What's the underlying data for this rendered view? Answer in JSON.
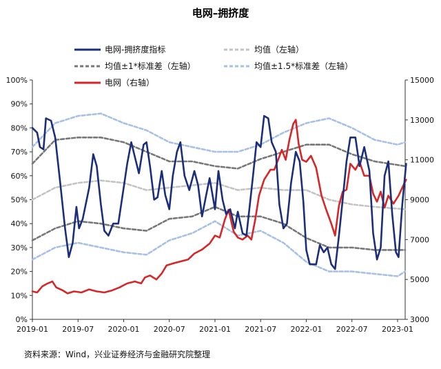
{
  "chart_data": {
    "type": "line",
    "title": "电网–拥挤度",
    "source": "资料来源：Wind，兴业证券经济与金融研究院整理",
    "x_ticks": [
      "2019-01",
      "2019-07",
      "2020-01",
      "2020-07",
      "2021-01",
      "2021-07",
      "2022-01",
      "2022-07",
      "2023-01"
    ],
    "x_range": [
      "2019-01",
      "2023-02"
    ],
    "y_left": {
      "ticks": [
        "0%",
        "10%",
        "20%",
        "30%",
        "40%",
        "50%",
        "60%",
        "70%",
        "80%",
        "90%",
        "100%"
      ],
      "range": [
        0,
        100
      ],
      "unit": "%"
    },
    "y_right": {
      "ticks": [
        "3000",
        "5000",
        "7000",
        "9000",
        "11000",
        "13000",
        "15000"
      ],
      "range": [
        3000,
        15000
      ]
    },
    "grid": false,
    "legend_position": "top",
    "series": [
      {
        "name": "电网-拥挤度指标",
        "axis": "left",
        "color": "#1a2e7a",
        "style": "solid",
        "points": [
          [
            "2019-01-01",
            80
          ],
          [
            "2019-01-20",
            78
          ],
          [
            "2019-02-01",
            72
          ],
          [
            "2019-02-15",
            71
          ],
          [
            "2019-02-25",
            84
          ],
          [
            "2019-03-15",
            83
          ],
          [
            "2019-04-01",
            76
          ],
          [
            "2019-04-20",
            58
          ],
          [
            "2019-05-10",
            38
          ],
          [
            "2019-05-25",
            26
          ],
          [
            "2019-06-10",
            32
          ],
          [
            "2019-06-25",
            47
          ],
          [
            "2019-07-05",
            38
          ],
          [
            "2019-07-20",
            42
          ],
          [
            "2019-08-15",
            55
          ],
          [
            "2019-09-01",
            69
          ],
          [
            "2019-09-15",
            64
          ],
          [
            "2019-10-01",
            48
          ],
          [
            "2019-10-15",
            37
          ],
          [
            "2019-11-01",
            35
          ],
          [
            "2019-11-20",
            40
          ],
          [
            "2019-12-10",
            40
          ],
          [
            "2020-01-01",
            55
          ],
          [
            "2020-01-15",
            65
          ],
          [
            "2020-02-01",
            74
          ],
          [
            "2020-02-15",
            68
          ],
          [
            "2020-03-01",
            61
          ],
          [
            "2020-03-20",
            73
          ],
          [
            "2020-04-01",
            74
          ],
          [
            "2020-04-15",
            64
          ],
          [
            "2020-05-01",
            50
          ],
          [
            "2020-05-15",
            51
          ],
          [
            "2020-06-01",
            62
          ],
          [
            "2020-06-15",
            52
          ],
          [
            "2020-07-01",
            46
          ],
          [
            "2020-07-15",
            60
          ],
          [
            "2020-08-01",
            70
          ],
          [
            "2020-08-15",
            74
          ],
          [
            "2020-09-01",
            60
          ],
          [
            "2020-09-20",
            54
          ],
          [
            "2020-10-10",
            62
          ],
          [
            "2020-10-25",
            56
          ],
          [
            "2020-11-10",
            43
          ],
          [
            "2020-11-25",
            51
          ],
          [
            "2020-12-10",
            59
          ],
          [
            "2021-01-01",
            46
          ],
          [
            "2021-01-15",
            62
          ],
          [
            "2021-02-01",
            50
          ],
          [
            "2021-02-15",
            44
          ],
          [
            "2021-03-01",
            46
          ],
          [
            "2021-03-20",
            38
          ],
          [
            "2021-04-01",
            45
          ],
          [
            "2021-04-20",
            36
          ],
          [
            "2021-05-05",
            35
          ],
          [
            "2021-05-20",
            49
          ],
          [
            "2021-06-01",
            60
          ],
          [
            "2021-06-15",
            74
          ],
          [
            "2021-07-01",
            72
          ],
          [
            "2021-07-15",
            85
          ],
          [
            "2021-08-01",
            84
          ],
          [
            "2021-08-15",
            74
          ],
          [
            "2021-09-01",
            70
          ],
          [
            "2021-09-15",
            48
          ],
          [
            "2021-10-01",
            38
          ],
          [
            "2021-10-15",
            40
          ],
          [
            "2021-11-01",
            57
          ],
          [
            "2021-11-20",
            70
          ],
          [
            "2021-12-05",
            66
          ],
          [
            "2021-12-20",
            49
          ],
          [
            "2022-01-01",
            29
          ],
          [
            "2022-01-15",
            23
          ],
          [
            "2022-02-10",
            23
          ],
          [
            "2022-02-25",
            31
          ],
          [
            "2022-03-10",
            28
          ],
          [
            "2022-03-25",
            30
          ],
          [
            "2022-04-10",
            23
          ],
          [
            "2022-04-25",
            21
          ],
          [
            "2022-05-10",
            35
          ],
          [
            "2022-05-25",
            50
          ],
          [
            "2022-06-10",
            66
          ],
          [
            "2022-06-25",
            76
          ],
          [
            "2022-07-15",
            76
          ],
          [
            "2022-08-01",
            64
          ],
          [
            "2022-08-20",
            72
          ],
          [
            "2022-09-10",
            62
          ],
          [
            "2022-09-25",
            36
          ],
          [
            "2022-10-10",
            25
          ],
          [
            "2022-10-25",
            30
          ],
          [
            "2022-11-10",
            60
          ],
          [
            "2022-11-25",
            66
          ],
          [
            "2022-12-10",
            44
          ],
          [
            "2022-12-25",
            28
          ],
          [
            "2023-01-05",
            26
          ],
          [
            "2023-01-20",
            48
          ],
          [
            "2023-02-05",
            65
          ]
        ]
      },
      {
        "name": "均值（左轴）",
        "axis": "left",
        "color": "#c4c4c4",
        "style": "dashed",
        "points": [
          [
            "2019-01-01",
            50
          ],
          [
            "2019-04-01",
            55
          ],
          [
            "2019-07-01",
            57
          ],
          [
            "2019-10-01",
            58
          ],
          [
            "2020-01-01",
            57
          ],
          [
            "2020-04-01",
            54
          ],
          [
            "2020-07-01",
            55
          ],
          [
            "2020-10-01",
            56
          ],
          [
            "2021-01-01",
            57
          ],
          [
            "2021-04-01",
            54
          ],
          [
            "2021-07-01",
            55
          ],
          [
            "2021-10-01",
            54
          ],
          [
            "2022-01-01",
            54
          ],
          [
            "2022-04-01",
            50
          ],
          [
            "2022-07-01",
            48
          ],
          [
            "2022-10-01",
            47
          ],
          [
            "2023-02-01",
            46
          ]
        ]
      },
      {
        "name": "均值±1*标准差（左轴）",
        "axis": "left",
        "color": "#777777",
        "style": "dashed",
        "points": [
          [
            "2019-01-01",
            33
          ],
          [
            "2019-04-01",
            38
          ],
          [
            "2019-07-01",
            41
          ],
          [
            "2019-10-01",
            40
          ],
          [
            "2020-01-01",
            38
          ],
          [
            "2020-04-01",
            37
          ],
          [
            "2020-07-01",
            42
          ],
          [
            "2020-10-01",
            43
          ],
          [
            "2021-01-01",
            47
          ],
          [
            "2021-04-01",
            43
          ],
          [
            "2021-07-01",
            43
          ],
          [
            "2021-10-01",
            40
          ],
          [
            "2022-01-01",
            34
          ],
          [
            "2022-04-01",
            30
          ],
          [
            "2022-07-01",
            30
          ],
          [
            "2022-10-01",
            29
          ],
          [
            "2023-02-01",
            29
          ]
        ]
      },
      {
        "name": "均值±1*标准差（左轴）",
        "axis": "left",
        "color": "#777777",
        "style": "dashed",
        "points": [
          [
            "2019-01-01",
            65
          ],
          [
            "2019-04-01",
            75
          ],
          [
            "2019-07-01",
            76
          ],
          [
            "2019-10-01",
            76
          ],
          [
            "2020-01-01",
            74
          ],
          [
            "2020-04-01",
            70
          ],
          [
            "2020-07-01",
            66
          ],
          [
            "2020-10-01",
            66
          ],
          [
            "2021-01-01",
            64
          ],
          [
            "2021-04-01",
            63
          ],
          [
            "2021-07-01",
            67
          ],
          [
            "2021-10-01",
            70
          ],
          [
            "2022-01-01",
            73
          ],
          [
            "2022-04-01",
            73
          ],
          [
            "2022-07-01",
            69
          ],
          [
            "2022-10-01",
            66
          ],
          [
            "2023-02-01",
            64
          ]
        ]
      },
      {
        "name": "均值±1.5*标准差（左轴）",
        "axis": "left",
        "color": "#a7c0e6",
        "style": "dashed",
        "points": [
          [
            "2019-01-01",
            25
          ],
          [
            "2019-04-01",
            30
          ],
          [
            "2019-07-01",
            32
          ],
          [
            "2019-10-01",
            30
          ],
          [
            "2020-01-01",
            28
          ],
          [
            "2020-04-01",
            27
          ],
          [
            "2020-07-01",
            33
          ],
          [
            "2020-10-01",
            36
          ],
          [
            "2021-01-01",
            41
          ],
          [
            "2021-04-01",
            35
          ],
          [
            "2021-07-01",
            37
          ],
          [
            "2021-10-01",
            32
          ],
          [
            "2022-01-01",
            24
          ],
          [
            "2022-04-01",
            20
          ],
          [
            "2022-07-01",
            20
          ],
          [
            "2022-10-01",
            19
          ],
          [
            "2023-01-01",
            18
          ],
          [
            "2023-02-01",
            20
          ]
        ]
      },
      {
        "name": "均值±1.5*标准差（左轴）",
        "axis": "left",
        "color": "#a7c0e6",
        "style": "dashed",
        "points": [
          [
            "2019-01-01",
            72
          ],
          [
            "2019-04-01",
            82
          ],
          [
            "2019-07-01",
            85
          ],
          [
            "2019-10-01",
            86
          ],
          [
            "2020-01-01",
            82
          ],
          [
            "2020-04-01",
            79
          ],
          [
            "2020-07-01",
            74
          ],
          [
            "2020-10-01",
            72
          ],
          [
            "2021-01-01",
            70
          ],
          [
            "2021-04-01",
            70
          ],
          [
            "2021-07-01",
            73
          ],
          [
            "2021-10-01",
            78
          ],
          [
            "2022-01-01",
            82
          ],
          [
            "2022-04-01",
            84
          ],
          [
            "2022-07-01",
            80
          ],
          [
            "2022-10-01",
            75
          ],
          [
            "2023-01-01",
            73
          ],
          [
            "2023-02-01",
            74
          ]
        ]
      },
      {
        "name": "电网（右轴）",
        "axis": "right",
        "color": "#d62728",
        "style": "solid",
        "points": [
          [
            "2019-01-01",
            4400
          ],
          [
            "2019-01-20",
            4350
          ],
          [
            "2019-02-10",
            4650
          ],
          [
            "2019-03-01",
            4800
          ],
          [
            "2019-03-20",
            4900
          ],
          [
            "2019-04-05",
            4600
          ],
          [
            "2019-05-01",
            4450
          ],
          [
            "2019-05-20",
            4300
          ],
          [
            "2019-06-15",
            4400
          ],
          [
            "2019-07-15",
            4350
          ],
          [
            "2019-08-15",
            4500
          ],
          [
            "2019-09-15",
            4400
          ],
          [
            "2019-10-15",
            4350
          ],
          [
            "2019-11-15",
            4450
          ],
          [
            "2019-12-15",
            4600
          ],
          [
            "2020-01-15",
            4800
          ],
          [
            "2020-02-15",
            4900
          ],
          [
            "2020-03-10",
            4800
          ],
          [
            "2020-03-25",
            5100
          ],
          [
            "2020-04-15",
            5200
          ],
          [
            "2020-05-10",
            5000
          ],
          [
            "2020-06-01",
            5300
          ],
          [
            "2020-06-20",
            5700
          ],
          [
            "2020-07-15",
            5800
          ],
          [
            "2020-08-15",
            5900
          ],
          [
            "2020-09-15",
            6000
          ],
          [
            "2020-10-10",
            6300
          ],
          [
            "2020-11-10",
            6500
          ],
          [
            "2020-12-10",
            6800
          ],
          [
            "2021-01-01",
            7200
          ],
          [
            "2021-01-20",
            7100
          ],
          [
            "2021-02-10",
            8000
          ],
          [
            "2021-02-25",
            8500
          ],
          [
            "2021-03-15",
            7400
          ],
          [
            "2021-04-01",
            7100
          ],
          [
            "2021-04-20",
            7000
          ],
          [
            "2021-05-10",
            7200
          ],
          [
            "2021-05-25",
            7000
          ],
          [
            "2021-06-10",
            8000
          ],
          [
            "2021-06-25",
            9200
          ],
          [
            "2021-07-15",
            10000
          ],
          [
            "2021-08-10",
            10500
          ],
          [
            "2021-08-25",
            10500
          ],
          [
            "2021-09-10",
            11000
          ],
          [
            "2021-09-25",
            11500
          ],
          [
            "2021-10-10",
            11000
          ],
          [
            "2021-10-25",
            12000
          ],
          [
            "2021-11-10",
            12800
          ],
          [
            "2021-11-20",
            13000
          ],
          [
            "2021-12-01",
            11800
          ],
          [
            "2021-12-15",
            11000
          ],
          [
            "2022-01-01",
            10900
          ],
          [
            "2022-01-20",
            11200
          ],
          [
            "2022-02-10",
            10600
          ],
          [
            "2022-03-01",
            9200
          ],
          [
            "2022-03-20",
            8500
          ],
          [
            "2022-04-10",
            7800
          ],
          [
            "2022-04-25",
            7200
          ],
          [
            "2022-05-10",
            8700
          ],
          [
            "2022-05-25",
            9400
          ],
          [
            "2022-06-10",
            9500
          ],
          [
            "2022-06-25",
            10800
          ],
          [
            "2022-07-15",
            10500
          ],
          [
            "2022-08-01",
            10900
          ],
          [
            "2022-08-20",
            10200
          ],
          [
            "2022-09-10",
            10200
          ],
          [
            "2022-09-25",
            9300
          ],
          [
            "2022-10-10",
            8900
          ],
          [
            "2022-10-25",
            9400
          ],
          [
            "2022-11-10",
            8600
          ],
          [
            "2022-11-25",
            9200
          ],
          [
            "2022-12-15",
            8800
          ],
          [
            "2023-01-05",
            9200
          ],
          [
            "2023-01-20",
            9600
          ],
          [
            "2023-02-05",
            10000
          ]
        ]
      }
    ],
    "legend": [
      {
        "label": "电网-拥挤度指标",
        "color": "#1a2e7a",
        "style": "solid",
        "width": 3
      },
      {
        "label": "均值（左轴）",
        "color": "#c4c4c4",
        "style": "dashed",
        "width": 3
      },
      {
        "label": "均值±1*标准差（左轴）",
        "color": "#777777",
        "style": "dashed",
        "width": 3
      },
      {
        "label": "均值±1.5*标准差（左轴）",
        "color": "#a7c0e6",
        "style": "dashed",
        "width": 3
      },
      {
        "label": "电网（右轴）",
        "color": "#d62728",
        "style": "solid",
        "width": 3
      }
    ]
  }
}
